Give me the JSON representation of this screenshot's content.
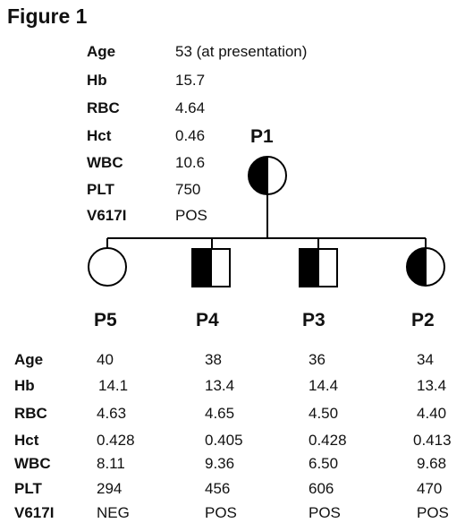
{
  "figure_title": "Figure 1",
  "proband": {
    "id": "P1",
    "rows": [
      {
        "label": "Age",
        "value": "53  (at presentation)"
      },
      {
        "label": "Hb",
        "value": "15.7"
      },
      {
        "label": "RBC",
        "value": "4.64"
      },
      {
        "label": "Hct",
        "value": "0.46"
      },
      {
        "label": "WBC",
        "value": "10.6"
      },
      {
        "label": "PLT",
        "value": "750"
      },
      {
        "label": "V617I",
        "value": "POS"
      }
    ]
  },
  "children": [
    {
      "id": "P5",
      "shape": "circle",
      "affected": false
    },
    {
      "id": "P4",
      "shape": "square",
      "affected": true
    },
    {
      "id": "P3",
      "shape": "square",
      "affected": true
    },
    {
      "id": "P2",
      "shape": "circle",
      "affected": true
    }
  ],
  "table": {
    "labels": [
      "Age",
      "Hb",
      "RBC",
      "Hct",
      "WBC",
      "PLT",
      "V617I"
    ],
    "columns": [
      {
        "id": "P5",
        "values": [
          "40",
          "14.1",
          "4.63",
          "0.428",
          "8.11",
          "294",
          "NEG"
        ]
      },
      {
        "id": "P4",
        "values": [
          "38",
          "13.4",
          "4.65",
          "0.405",
          "9.36",
          "456",
          "POS"
        ]
      },
      {
        "id": "P3",
        "values": [
          "36",
          "14.4",
          "4.50",
          "0.428",
          "6.50",
          "606",
          "POS"
        ]
      },
      {
        "id": "P2",
        "values": [
          "34",
          "13.4",
          "4.40",
          "0.413",
          "9.68",
          "470",
          "POS"
        ]
      }
    ]
  },
  "colors": {
    "line": "#000000",
    "fill": "#000000",
    "background": "#ffffff"
  }
}
